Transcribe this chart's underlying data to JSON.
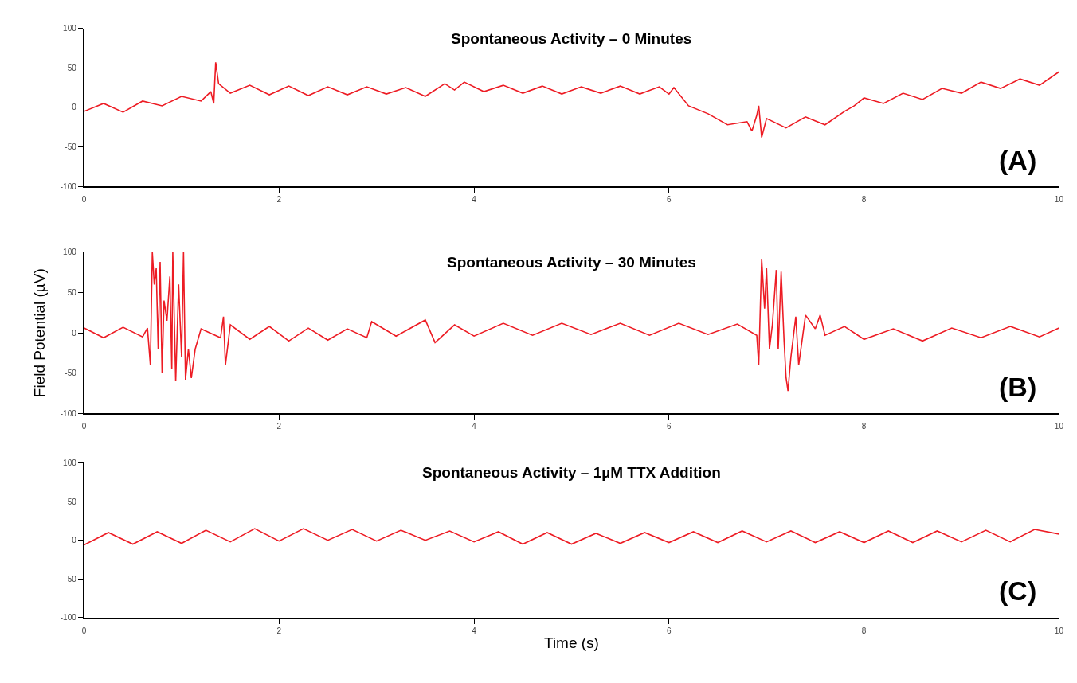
{
  "chart_data": [
    {
      "type": "line",
      "title": "Spontaneous Activity – 0 Minutes",
      "annotations": [
        "(A)"
      ],
      "xlim": [
        0,
        10
      ],
      "ylim": [
        -100,
        100
      ],
      "xticks": [
        0,
        2,
        4,
        6,
        8,
        10
      ],
      "yticks": [
        -100,
        -50,
        0,
        50,
        100
      ],
      "series": [
        {
          "color": "#ed1c24",
          "x": [
            0,
            0.2,
            0.4,
            0.6,
            0.8,
            1.0,
            1.2,
            1.3,
            1.33,
            1.35,
            1.38,
            1.5,
            1.7,
            1.9,
            2.1,
            2.3,
            2.5,
            2.7,
            2.9,
            3.1,
            3.3,
            3.5,
            3.7,
            3.8,
            3.9,
            4.1,
            4.3,
            4.5,
            4.7,
            4.9,
            5.1,
            5.3,
            5.5,
            5.7,
            5.9,
            6.0,
            6.05,
            6.2,
            6.4,
            6.6,
            6.8,
            6.85,
            6.9,
            6.92,
            6.95,
            7.0,
            7.2,
            7.4,
            7.6,
            7.8,
            7.9,
            8.0,
            8.2,
            8.4,
            8.6,
            8.8,
            9.0,
            9.2,
            9.4,
            9.6,
            9.8,
            10
          ],
          "values": [
            -5,
            5,
            -6,
            8,
            2,
            14,
            8,
            20,
            5,
            57,
            30,
            18,
            28,
            16,
            27,
            15,
            26,
            16,
            26,
            17,
            25,
            14,
            30,
            22,
            32,
            20,
            28,
            18,
            27,
            17,
            26,
            18,
            27,
            17,
            26,
            17,
            25,
            2,
            -8,
            -22,
            -18,
            -30,
            -10,
            2,
            -38,
            -14,
            -26,
            -12,
            -22,
            -5,
            2,
            12,
            5,
            18,
            10,
            24,
            18,
            32,
            24,
            36,
            28,
            45
          ]
        }
      ]
    },
    {
      "type": "line",
      "title": "Spontaneous Activity – 30 Minutes",
      "ylabel": "Field Potential (µV)",
      "annotations": [
        "(B)"
      ],
      "xlim": [
        0,
        10
      ],
      "ylim": [
        -100,
        100
      ],
      "xticks": [
        0,
        2,
        4,
        6,
        8,
        10
      ],
      "yticks": [
        -100,
        -50,
        0,
        50,
        100
      ],
      "series": [
        {
          "color": "#ed1c24",
          "x": [
            0,
            0.2,
            0.4,
            0.6,
            0.65,
            0.68,
            0.7,
            0.72,
            0.74,
            0.76,
            0.78,
            0.8,
            0.82,
            0.85,
            0.88,
            0.9,
            0.91,
            0.94,
            0.97,
            1.0,
            1.02,
            1.04,
            1.07,
            1.1,
            1.14,
            1.2,
            1.4,
            1.43,
            1.45,
            1.5,
            1.7,
            1.9,
            2.1,
            2.3,
            2.5,
            2.7,
            2.9,
            2.95,
            3.2,
            3.5,
            3.6,
            3.8,
            4.0,
            4.3,
            4.6,
            4.9,
            5.2,
            5.5,
            5.8,
            6.1,
            6.4,
            6.7,
            6.9,
            6.92,
            6.95,
            6.98,
            7.0,
            7.03,
            7.06,
            7.1,
            7.12,
            7.15,
            7.18,
            7.2,
            7.22,
            7.25,
            7.3,
            7.33,
            7.4,
            7.5,
            7.55,
            7.6,
            7.8,
            8.0,
            8.3,
            8.6,
            8.9,
            9.2,
            9.5,
            9.8,
            10
          ],
          "values": [
            6,
            -6,
            7,
            -5,
            6,
            -40,
            100,
            60,
            80,
            -20,
            88,
            -50,
            40,
            15,
            70,
            -45,
            100,
            -60,
            60,
            -30,
            100,
            -58,
            -20,
            -56,
            -20,
            5,
            -6,
            20,
            -40,
            10,
            -8,
            8,
            -10,
            6,
            -9,
            5,
            -6,
            14,
            -4,
            16,
            -12,
            10,
            -4,
            12,
            -3,
            12,
            -2,
            12,
            -3,
            12,
            -2,
            11,
            -3,
            -40,
            92,
            30,
            80,
            -20,
            10,
            78,
            -20,
            76,
            -10,
            -55,
            -72,
            -30,
            20,
            -40,
            22,
            5,
            22,
            -3,
            8,
            -8,
            5,
            -10,
            6,
            -6,
            8,
            -5,
            6
          ]
        }
      ]
    },
    {
      "type": "line",
      "title": "Spontaneous Activity – 1µM TTX Addition",
      "xlabel": "Time (s)",
      "annotations": [
        "(C)"
      ],
      "xlim": [
        0,
        10
      ],
      "ylim": [
        -100,
        100
      ],
      "xticks": [
        0,
        2,
        4,
        6,
        8,
        10
      ],
      "yticks": [
        -100,
        -50,
        0,
        50,
        100
      ],
      "series": [
        {
          "color": "#ed1c24",
          "x": [
            0,
            0.25,
            0.5,
            0.75,
            1.0,
            1.25,
            1.5,
            1.75,
            2.0,
            2.25,
            2.5,
            2.75,
            3.0,
            3.25,
            3.5,
            3.75,
            4.0,
            4.25,
            4.5,
            4.75,
            5.0,
            5.25,
            5.5,
            5.75,
            6.0,
            6.25,
            6.5,
            6.75,
            7.0,
            7.25,
            7.5,
            7.75,
            8.0,
            8.25,
            8.5,
            8.75,
            9.0,
            9.25,
            9.5,
            9.75,
            10
          ],
          "values": [
            -6,
            10,
            -5,
            11,
            -4,
            13,
            -2,
            15,
            -1,
            15,
            0,
            14,
            -1,
            13,
            0,
            12,
            -2,
            11,
            -5,
            10,
            -5,
            9,
            -4,
            10,
            -3,
            11,
            -3,
            12,
            -2,
            12,
            -3,
            11,
            -3,
            12,
            -3,
            12,
            -2,
            13,
            -2,
            14,
            8
          ]
        }
      ]
    }
  ]
}
